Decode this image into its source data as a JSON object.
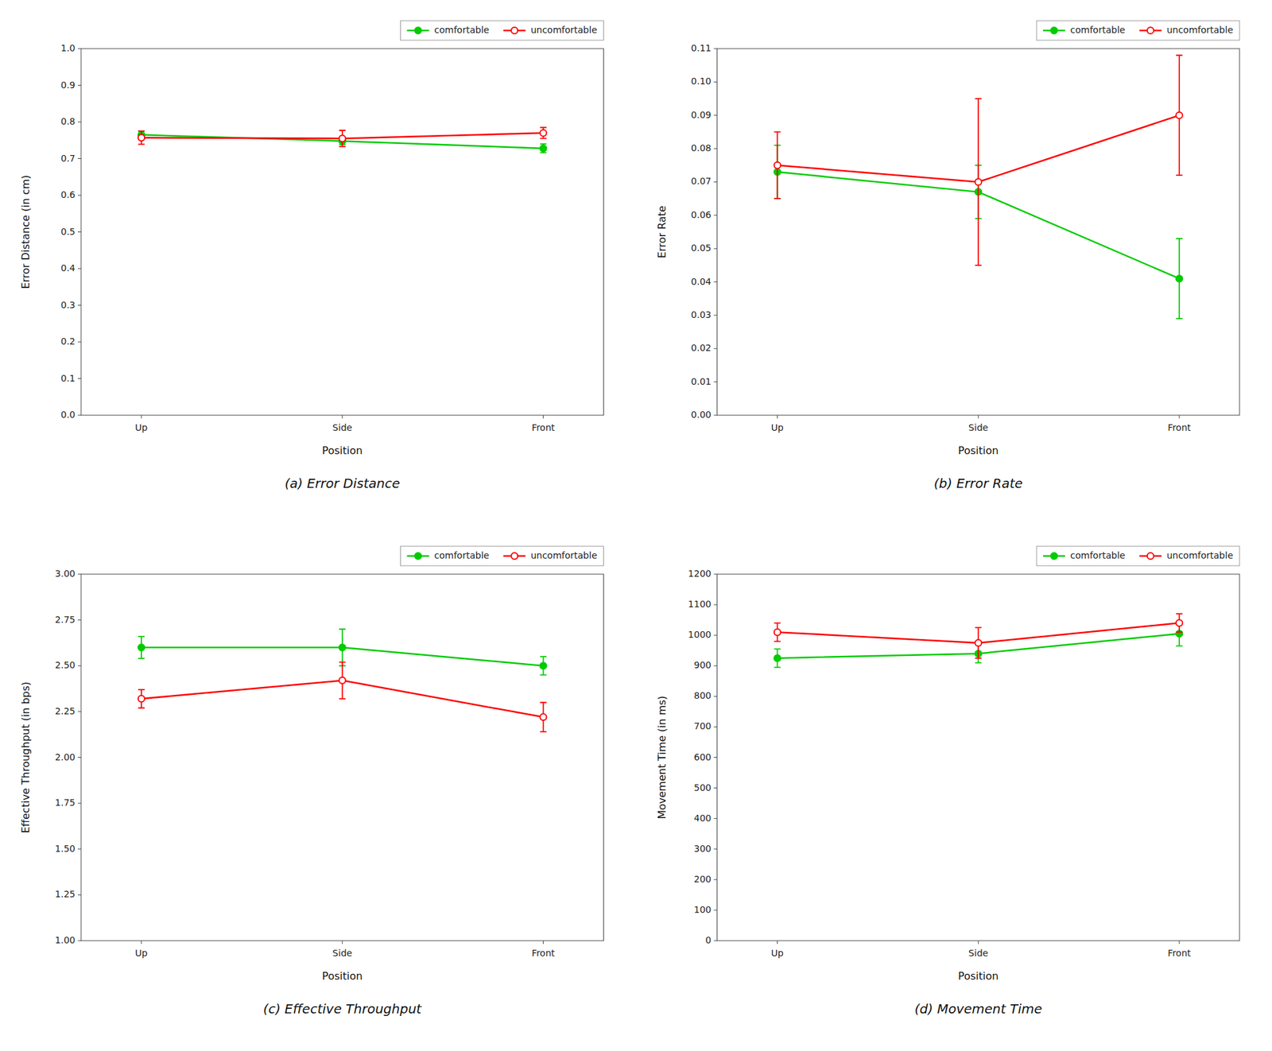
{
  "chart_data": [
    {
      "type": "line",
      "title": "(a)  Error Distance",
      "xlabel": "Position",
      "ylabel": "Error Distance (in cm)",
      "categories": [
        "Up",
        "Side",
        "Front"
      ],
      "series": [
        {
          "name": "comfortable",
          "color": "#00CC00",
          "marker": "circle",
          "values": [
            0.765,
            0.748,
            0.728
          ],
          "errors": [
            0.01,
            0.01,
            0.012
          ]
        },
        {
          "name": "uncomfortable",
          "color": "#FF0000",
          "marker": "open-circle",
          "values": [
            0.757,
            0.755,
            0.77
          ],
          "errors": [
            0.018,
            0.022,
            0.015
          ]
        }
      ],
      "ylim": [
        0,
        1.0
      ],
      "yticks": [
        {
          "value": 0,
          "label": "0.0"
        },
        0.1,
        0.2,
        0.3,
        0.4,
        0.5,
        0.6,
        0.7,
        0.8,
        0.9,
        {
          "value": 1.0,
          "label": "1.0"
        }
      ],
      "legend": "upper right",
      "grid": false
    },
    {
      "type": "line",
      "title": "(b)  Error Rate",
      "xlabel": "Position",
      "ylabel": "Error Rate",
      "categories": [
        "Up",
        "Side",
        "Front"
      ],
      "series": [
        {
          "name": "comfortable",
          "color": "#00CC00",
          "marker": "circle",
          "values": [
            0.073,
            0.067,
            0.041
          ],
          "errors": [
            0.008,
            0.008,
            0.012
          ]
        },
        {
          "name": "uncomfortable",
          "color": "#FF0000",
          "marker": "open-circle",
          "values": [
            0.075,
            0.07,
            0.09
          ],
          "errors": [
            0.01,
            0.025,
            0.018
          ]
        }
      ],
      "ylim": [
        0,
        0.11
      ],
      "yticks": [
        {
          "value": 0,
          "label": "0.00"
        },
        0.01,
        0.02,
        0.03,
        0.04,
        0.05,
        0.06,
        0.07,
        0.08,
        0.09,
        {
          "value": 0.1,
          "label": "0.10"
        },
        0.11
      ],
      "legend": "upper right",
      "grid": false
    },
    {
      "type": "line",
      "title": "(c)  Effective Throughput",
      "xlabel": "Position",
      "ylabel": "Effective Throughput (in bps)",
      "categories": [
        "Up",
        "Side",
        "Front"
      ],
      "series": [
        {
          "name": "comfortable",
          "color": "#00CC00",
          "marker": "circle",
          "values": [
            2.6,
            2.6,
            2.5
          ],
          "errors": [
            0.06,
            0.1,
            0.05
          ]
        },
        {
          "name": "uncomfortable",
          "color": "#FF0000",
          "marker": "open-circle",
          "values": [
            2.32,
            2.42,
            2.22
          ],
          "errors": [
            0.05,
            0.1,
            0.08
          ]
        }
      ],
      "ylim": [
        1.0,
        3.0
      ],
      "yticks": [
        {
          "value": 1.0,
          "label": "1.00"
        },
        1.25,
        {
          "value": 1.5,
          "label": "1.50"
        },
        1.75,
        {
          "value": 2.0,
          "label": "2.00"
        },
        2.25,
        {
          "value": 2.5,
          "label": "2.50"
        },
        2.75,
        {
          "value": 3.0,
          "label": "3.00"
        }
      ],
      "legend": "upper right",
      "grid": false
    },
    {
      "type": "line",
      "title": "(d)  Movement Time",
      "xlabel": "Position",
      "ylabel": "Movement Time (in ms)",
      "categories": [
        "Up",
        "Side",
        "Front"
      ],
      "series": [
        {
          "name": "comfortable",
          "color": "#00CC00",
          "marker": "circle",
          "values": [
            925,
            940,
            1005
          ],
          "errors": [
            30,
            30,
            40
          ]
        },
        {
          "name": "uncomfortable",
          "color": "#FF0000",
          "marker": "open-circle",
          "values": [
            1010,
            975,
            1040
          ],
          "errors": [
            30,
            50,
            30
          ]
        }
      ],
      "ylim": [
        0,
        1200
      ],
      "yticks": [
        0,
        100,
        200,
        300,
        400,
        500,
        600,
        700,
        800,
        900,
        1000,
        1100,
        1200
      ],
      "legend": "upper right",
      "grid": false
    }
  ]
}
